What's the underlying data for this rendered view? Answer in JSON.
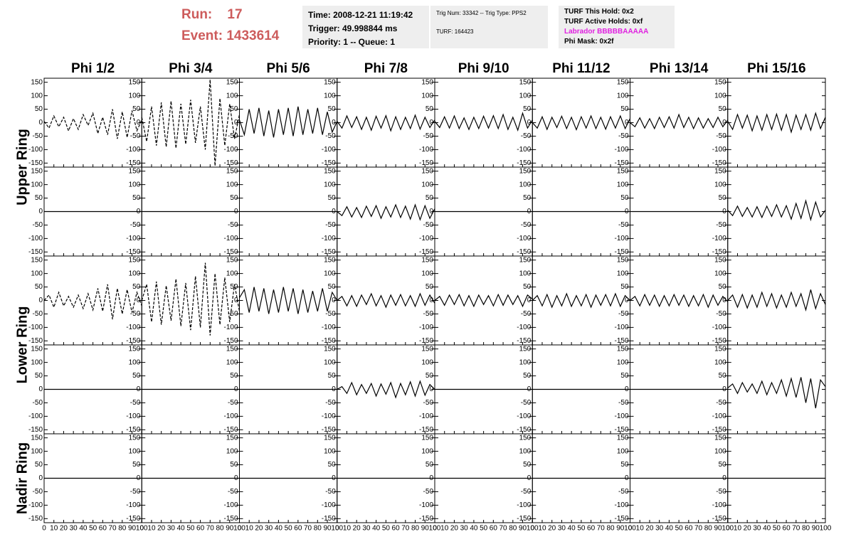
{
  "header": {
    "run_label": "Run:",
    "run": "17",
    "event_label": "Event:",
    "event": "1433614",
    "info_boxes": [
      [
        "Time: 2008-12-21 11:19:42",
        "Trigger: 49.998844 ms",
        "Priority: 1 -- Queue: 1"
      ],
      [
        "Trig Num: 33342 -- Trig Type: PPS2",
        "TURF: 164423"
      ],
      [
        "TURF This Hold: 0x2",
        "TURF Active Holds: 0xf",
        "Labrador BBBBBAAAAA",
        "Phi Mask: 0x2f"
      ]
    ]
  },
  "chart_data": {
    "type": "line",
    "color": "#000000",
    "columns": [
      "Phi 1/2",
      "Phi 3/4",
      "Phi 5/6",
      "Phi 7/8",
      "Phi 9/10",
      "Phi 11/12",
      "Phi 13/14",
      "Phi 15/16"
    ],
    "rows": [
      "Upper Ring",
      "Lower Ring",
      "Nadir Ring"
    ],
    "xlim": [
      0,
      100
    ],
    "xticks": [
      0,
      10,
      20,
      30,
      40,
      50,
      60,
      70,
      80,
      90,
      100
    ],
    "ylim": [
      -165,
      165
    ],
    "yticks": [
      -150,
      -100,
      -50,
      0,
      50,
      100,
      150
    ],
    "x": [
      0,
      5,
      10,
      15,
      20,
      25,
      30,
      35,
      40,
      45,
      50,
      55,
      60,
      65,
      70,
      75,
      80,
      85,
      90,
      95,
      100
    ],
    "panels": [
      [
        {
          "dashed": true,
          "values": [
            5,
            -20,
            25,
            -15,
            20,
            -30,
            15,
            -25,
            30,
            -10,
            35,
            -40,
            20,
            -45,
            50,
            -60,
            40,
            -55,
            45,
            -30,
            10
          ]
        },
        {
          "dashed": true,
          "values": [
            20,
            -70,
            60,
            -85,
            75,
            -90,
            80,
            -95,
            70,
            -80,
            85,
            -75,
            60,
            -100,
            160,
            -160,
            90,
            -85,
            70,
            -60,
            30
          ]
        },
        {
          "values": [
            10,
            -45,
            50,
            -40,
            55,
            -50,
            45,
            -55,
            50,
            -45,
            55,
            -50,
            60,
            -45,
            50,
            -40,
            55,
            -45,
            40,
            -35,
            5
          ]
        },
        {
          "values": [
            5,
            -20,
            25,
            -18,
            22,
            -25,
            20,
            -28,
            24,
            -20,
            26,
            -30,
            22,
            -25,
            20,
            -22,
            28,
            -24,
            20,
            -18,
            10
          ]
        },
        {
          "values": [
            5,
            -18,
            22,
            -20,
            25,
            -22,
            18,
            -25,
            20,
            -22,
            24,
            -20,
            26,
            -22,
            30,
            -25,
            20,
            -28,
            35,
            -20,
            10
          ]
        },
        {
          "values": [
            0,
            -20,
            22,
            -25,
            20,
            -18,
            24,
            -22,
            20,
            -26,
            22,
            -20,
            25,
            -22,
            20,
            -24,
            22,
            -20,
            25,
            -22,
            15
          ]
        },
        {
          "values": [
            0,
            -15,
            18,
            -20,
            15,
            -22,
            20,
            -18,
            22,
            -20,
            30,
            -18,
            20,
            -22,
            18,
            -20,
            15,
            -18,
            20,
            -15,
            10
          ]
        },
        {
          "values": [
            5,
            -25,
            30,
            -20,
            28,
            -30,
            25,
            -28,
            30,
            -25,
            32,
            -28,
            30,
            -35,
            28,
            -25,
            30,
            -28,
            35,
            -22,
            20
          ]
        }
      ],
      [
        {
          "values": [
            0,
            0,
            0,
            0,
            0,
            0,
            0,
            0,
            0,
            0,
            0,
            0,
            0,
            0,
            0,
            0,
            0,
            0,
            0,
            0,
            0
          ]
        },
        {
          "values": [
            0,
            0,
            0,
            0,
            0,
            0,
            0,
            0,
            0,
            0,
            0,
            0,
            0,
            0,
            0,
            0,
            0,
            0,
            0,
            0,
            0
          ]
        },
        {
          "values": [
            0,
            0,
            0,
            0,
            0,
            0,
            0,
            0,
            0,
            0,
            0,
            0,
            0,
            0,
            0,
            0,
            0,
            0,
            0,
            0,
            0
          ]
        },
        {
          "values": [
            0,
            -15,
            18,
            -20,
            15,
            -22,
            20,
            -18,
            22,
            -25,
            18,
            -20,
            25,
            -22,
            20,
            -28,
            25,
            -30,
            22,
            -25,
            10
          ]
        },
        {
          "values": [
            0,
            0,
            0,
            0,
            0,
            0,
            0,
            0,
            0,
            0,
            0,
            0,
            0,
            0,
            0,
            0,
            0,
            0,
            0,
            0,
            0
          ]
        },
        {
          "values": [
            0,
            0,
            0,
            0,
            0,
            0,
            0,
            0,
            0,
            0,
            0,
            0,
            0,
            0,
            0,
            0,
            0,
            0,
            0,
            0,
            0
          ]
        },
        {
          "values": [
            0,
            0,
            0,
            0,
            0,
            0,
            0,
            0,
            0,
            0,
            0,
            0,
            0,
            0,
            0,
            0,
            0,
            0,
            0,
            0,
            0
          ]
        },
        {
          "values": [
            5,
            -15,
            20,
            -18,
            15,
            -20,
            18,
            -22,
            20,
            -18,
            25,
            -20,
            22,
            -28,
            30,
            -25,
            40,
            -30,
            35,
            -20,
            5
          ]
        }
      ],
      [
        {
          "dashed": true,
          "values": [
            0,
            20,
            -25,
            30,
            -20,
            15,
            -25,
            20,
            -30,
            25,
            -35,
            45,
            -40,
            60,
            -70,
            45,
            -50,
            40,
            -45,
            30,
            -20
          ]
        },
        {
          "dashed": true,
          "values": [
            0,
            60,
            -80,
            70,
            -90,
            55,
            -75,
            80,
            -95,
            65,
            -110,
            90,
            -100,
            140,
            -130,
            100,
            -90,
            85,
            -80,
            60,
            -40
          ]
        },
        {
          "values": [
            10,
            40,
            -45,
            50,
            -40,
            45,
            -50,
            40,
            -45,
            50,
            -40,
            45,
            -50,
            40,
            -45,
            35,
            -40,
            45,
            -40,
            30,
            0
          ]
        },
        {
          "values": [
            0,
            15,
            -20,
            18,
            -22,
            20,
            -15,
            25,
            -20,
            18,
            -25,
            20,
            -18,
            22,
            -20,
            18,
            -22,
            25,
            -18,
            20,
            -10
          ]
        },
        {
          "values": [
            0,
            15,
            -18,
            20,
            -15,
            22,
            -20,
            18,
            -22,
            20,
            -15,
            18,
            -20,
            22,
            -18,
            20,
            -15,
            18,
            -22,
            20,
            5
          ]
        },
        {
          "values": [
            0,
            18,
            -20,
            22,
            -25,
            18,
            -20,
            25,
            -22,
            18,
            -20,
            22,
            -25,
            20,
            -18,
            22,
            -20,
            25,
            -22,
            18,
            0
          ]
        },
        {
          "values": [
            0,
            15,
            -20,
            22,
            -18,
            20,
            -22,
            18,
            -20,
            22,
            -18,
            20,
            -22,
            18,
            -20,
            22,
            -25,
            20,
            -18,
            15,
            -5
          ]
        },
        {
          "values": [
            0,
            20,
            -25,
            22,
            -28,
            20,
            -25,
            30,
            -22,
            25,
            -28,
            20,
            -25,
            30,
            -22,
            25,
            -35,
            40,
            -30,
            25,
            -15
          ]
        }
      ],
      [
        {
          "values": [
            0,
            0,
            0,
            0,
            0,
            0,
            0,
            0,
            0,
            0,
            0,
            0,
            0,
            0,
            0,
            0,
            0,
            0,
            0,
            0,
            0
          ]
        },
        {
          "values": [
            0,
            0,
            0,
            0,
            0,
            0,
            0,
            0,
            0,
            0,
            0,
            0,
            0,
            0,
            0,
            0,
            0,
            0,
            0,
            0,
            0
          ]
        },
        {
          "values": [
            0,
            0,
            0,
            0,
            0,
            0,
            0,
            0,
            0,
            0,
            0,
            0,
            0,
            0,
            0,
            0,
            0,
            0,
            0,
            0,
            0
          ]
        },
        {
          "values": [
            0,
            10,
            -15,
            25,
            -20,
            18,
            -15,
            22,
            -25,
            20,
            -18,
            25,
            -30,
            22,
            -20,
            28,
            -25,
            30,
            -22,
            18,
            0
          ]
        },
        {
          "values": [
            0,
            0,
            0,
            0,
            0,
            0,
            0,
            0,
            0,
            0,
            0,
            0,
            0,
            0,
            0,
            0,
            0,
            0,
            0,
            0,
            0
          ]
        },
        {
          "values": [
            0,
            0,
            0,
            0,
            0,
            0,
            0,
            0,
            0,
            0,
            0,
            0,
            0,
            0,
            0,
            0,
            0,
            0,
            0,
            0,
            0
          ]
        },
        {
          "values": [
            0,
            0,
            0,
            0,
            0,
            0,
            0,
            0,
            0,
            0,
            0,
            0,
            0,
            0,
            0,
            0,
            0,
            0,
            0,
            0,
            0
          ]
        },
        {
          "values": [
            5,
            20,
            -15,
            25,
            -10,
            20,
            -15,
            30,
            -20,
            25,
            -15,
            35,
            -25,
            40,
            -30,
            45,
            -50,
            40,
            -70,
            35,
            10
          ]
        }
      ],
      [
        {
          "values": [
            0,
            0,
            0,
            0,
            0,
            0,
            0,
            0,
            0,
            0,
            0,
            0,
            0,
            0,
            0,
            0,
            0,
            0,
            0,
            0,
            0
          ]
        },
        {
          "values": [
            0,
            0,
            0,
            0,
            0,
            0,
            0,
            0,
            0,
            0,
            0,
            0,
            0,
            0,
            0,
            0,
            0,
            0,
            0,
            0,
            0
          ]
        },
        {
          "values": [
            0,
            0,
            0,
            0,
            0,
            0,
            0,
            0,
            0,
            0,
            0,
            0,
            0,
            0,
            0,
            0,
            0,
            0,
            0,
            0,
            0
          ]
        },
        {
          "values": [
            0,
            0,
            0,
            0,
            0,
            0,
            0,
            0,
            0,
            0,
            0,
            0,
            0,
            0,
            0,
            0,
            0,
            0,
            0,
            0,
            0
          ]
        },
        {
          "values": [
            0,
            0,
            0,
            0,
            0,
            0,
            0,
            0,
            0,
            0,
            0,
            0,
            0,
            0,
            0,
            0,
            0,
            0,
            0,
            0,
            0
          ]
        },
        {
          "values": [
            0,
            0,
            0,
            0,
            0,
            0,
            0,
            0,
            0,
            0,
            0,
            0,
            0,
            0,
            0,
            0,
            0,
            0,
            0,
            0,
            0
          ]
        },
        {
          "values": [
            0,
            0,
            0,
            0,
            0,
            0,
            0,
            0,
            0,
            0,
            0,
            0,
            0,
            0,
            0,
            0,
            0,
            0,
            0,
            0,
            0
          ]
        },
        {
          "values": [
            0,
            0,
            0,
            0,
            0,
            0,
            0,
            0,
            0,
            0,
            0,
            0,
            0,
            0,
            0,
            0,
            0,
            0,
            0,
            0,
            0
          ]
        }
      ]
    ]
  }
}
